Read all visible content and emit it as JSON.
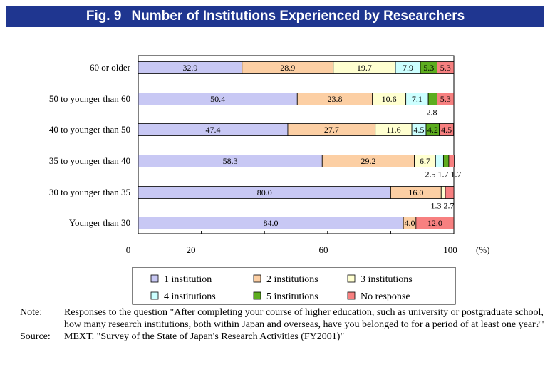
{
  "figure": {
    "number": "Fig. 9",
    "title": "Number of Institutions Experienced by Researchers"
  },
  "chart_data": {
    "type": "bar",
    "orientation": "horizontal",
    "stacked": true,
    "categories": [
      "60 or older",
      "50 to younger than 60",
      "40 to younger than 50",
      "35 to younger than 40",
      "30 to younger than 35",
      "Younger than 30"
    ],
    "series": [
      {
        "name": "1 institution",
        "color": "#c8c8f4",
        "values": [
          32.9,
          50.4,
          47.4,
          58.3,
          80.0,
          84.0
        ],
        "labels": [
          "32.9",
          "50.4",
          "47.4",
          "58.3",
          "80.0",
          "84.0"
        ]
      },
      {
        "name": "2 institutions",
        "color": "#fccfa4",
        "values": [
          28.9,
          23.8,
          27.7,
          29.2,
          16.0,
          4.0
        ],
        "labels": [
          "28.9",
          "23.8",
          "27.7",
          "29.2",
          "16.0",
          "4.0"
        ]
      },
      {
        "name": "3 institutions",
        "color": "#ffffd0",
        "values": [
          19.7,
          10.6,
          11.6,
          6.7,
          1.3,
          0
        ],
        "labels": [
          "19.7",
          "10.6",
          "11.6",
          "6.7",
          "1.3",
          ""
        ]
      },
      {
        "name": "4 institutions",
        "color": "#ccffff",
        "values": [
          7.9,
          7.1,
          4.5,
          2.5,
          0,
          0
        ],
        "labels": [
          "7.9",
          "7.1",
          "4.5",
          "2.5",
          "",
          ""
        ]
      },
      {
        "name": "5 institutions",
        "color": "#5dad1f",
        "values": [
          5.3,
          2.8,
          4.2,
          1.7,
          0,
          0
        ],
        "labels": [
          "5.3",
          "2.8",
          "4.2",
          "1.7",
          "",
          ""
        ]
      },
      {
        "name": "No response",
        "color": "#f78080",
        "values": [
          5.3,
          5.3,
          4.5,
          1.7,
          2.7,
          12.0
        ],
        "labels": [
          "5.3",
          "5.3",
          "4.5",
          "1.7",
          "2.7",
          "12.0"
        ]
      }
    ],
    "external_labels": [
      {
        "row": 1,
        "text": "2.8"
      },
      {
        "row": 3,
        "text": "2.5 1.7 1.7"
      },
      {
        "row": 4,
        "text": "1.3 2.7"
      }
    ],
    "xlim": [
      0,
      100
    ],
    "x_ticks": [
      "0",
      "20",
      "60",
      "100"
    ],
    "x_unit": "(%)",
    "legend_position": "bottom",
    "legend_columns": 3
  },
  "notes": {
    "note_label": "Note:",
    "note_text": "Responses to the question \"After completing your course of higher education, such as university or postgraduate school, how many research institutions, both within Japan and overseas, have you belonged to for a period of at least one year?\"",
    "source_label": "Source:",
    "source_text": "MEXT. \"Survey of the State of Japan's Research Activities (FY2001)\""
  }
}
